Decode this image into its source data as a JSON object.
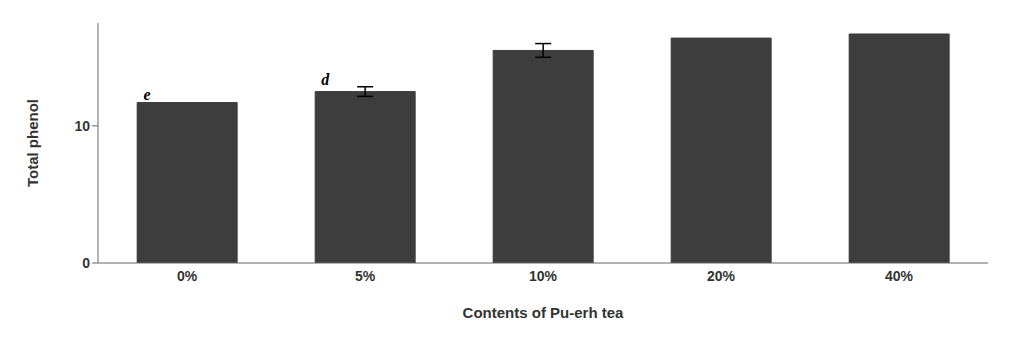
{
  "chart_data": {
    "type": "bar",
    "categories": [
      "0%",
      "5%",
      "10%",
      "20%",
      "40%"
    ],
    "values": [
      11.7,
      12.5,
      15.5,
      16.4,
      16.7
    ],
    "errors": [
      0.0,
      0.35,
      0.5,
      0.0,
      0.0
    ],
    "annotations": [
      "e",
      "d",
      null,
      null,
      null
    ],
    "color": "#3d3d3d",
    "xlabel": "Contents of Pu-erh tea",
    "ylabel": "Total phenol",
    "ylim": [
      0,
      17.5
    ],
    "yticks": [
      0,
      10
    ],
    "grid": false
  }
}
